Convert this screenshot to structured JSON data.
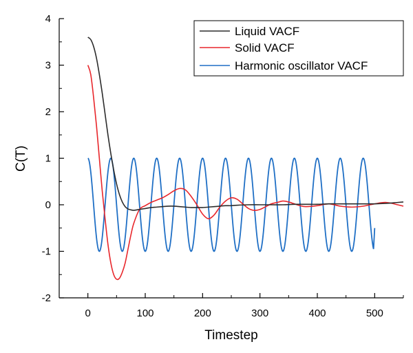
{
  "chart_data": {
    "type": "line",
    "title": "",
    "xlabel": "Timestep",
    "ylabel": "C(T)",
    "xlim": [
      -50,
      550
    ],
    "ylim": [
      -2,
      4
    ],
    "xticks": [
      0,
      100,
      200,
      300,
      400,
      500
    ],
    "xtick_labels": [
      "0",
      "100",
      "200",
      "300",
      "400",
      "500"
    ],
    "yticks": [
      -2,
      -1,
      0,
      1,
      2,
      3,
      4
    ],
    "ytick_labels": [
      "-2",
      "-1",
      "0",
      "1",
      "2",
      "3",
      "4"
    ],
    "grid": false,
    "legend_position": "top-right",
    "series": [
      {
        "name": "Liquid VACF",
        "color": "#2b2b2b",
        "x": [
          0,
          5,
          10,
          15,
          20,
          25,
          30,
          35,
          40,
          45,
          50,
          55,
          60,
          65,
          70,
          75,
          80,
          85,
          90,
          95,
          100,
          110,
          120,
          130,
          140,
          150,
          160,
          170,
          180,
          190,
          200,
          210,
          220,
          230,
          240,
          250,
          260,
          280,
          300,
          320,
          340,
          360,
          380,
          400,
          420,
          440,
          460,
          480,
          500,
          520,
          540,
          550
        ],
        "y": [
          3.6,
          3.55,
          3.4,
          3.15,
          2.8,
          2.4,
          1.95,
          1.5,
          1.1,
          0.75,
          0.45,
          0.22,
          0.06,
          -0.04,
          -0.09,
          -0.11,
          -0.12,
          -0.11,
          -0.1,
          -0.09,
          -0.08,
          -0.06,
          -0.05,
          -0.04,
          -0.03,
          -0.03,
          -0.04,
          -0.05,
          -0.06,
          -0.06,
          -0.06,
          -0.05,
          -0.04,
          -0.03,
          -0.02,
          -0.02,
          -0.01,
          0.0,
          0.0,
          0.0,
          0.0,
          0.01,
          0.01,
          0.01,
          0.02,
          0.02,
          0.02,
          0.02,
          0.02,
          0.03,
          0.05,
          0.06
        ]
      },
      {
        "name": "Solid VACF",
        "color": "#e8262b",
        "x": [
          0,
          5,
          10,
          15,
          20,
          25,
          30,
          35,
          40,
          45,
          50,
          55,
          60,
          65,
          70,
          75,
          80,
          90,
          100,
          110,
          120,
          130,
          140,
          150,
          160,
          170,
          180,
          190,
          200,
          210,
          220,
          230,
          240,
          250,
          260,
          270,
          280,
          290,
          300,
          310,
          320,
          330,
          340,
          350,
          360,
          370,
          380,
          400,
          420,
          440,
          460,
          480,
          500,
          520,
          540,
          550
        ],
        "y": [
          3.0,
          2.8,
          2.3,
          1.7,
          1.0,
          0.3,
          -0.3,
          -0.85,
          -1.25,
          -1.5,
          -1.6,
          -1.58,
          -1.45,
          -1.25,
          -0.95,
          -0.65,
          -0.4,
          -0.1,
          -0.02,
          0.05,
          0.1,
          0.15,
          0.22,
          0.3,
          0.35,
          0.32,
          0.18,
          0.0,
          -0.2,
          -0.3,
          -0.22,
          -0.05,
          0.08,
          0.15,
          0.12,
          0.02,
          -0.08,
          -0.12,
          -0.1,
          -0.04,
          0.02,
          0.05,
          0.08,
          0.06,
          0.02,
          -0.02,
          -0.04,
          -0.02,
          0.02,
          -0.03,
          -0.05,
          -0.03,
          0.02,
          0.05,
          0.0,
          -0.03
        ]
      },
      {
        "name": "Harmonic oscillator VACF",
        "color": "#1f6fc5",
        "period": 40,
        "amplitude": 1,
        "x_start": 0,
        "x_end": 500,
        "end_value": -0.5
      }
    ]
  }
}
